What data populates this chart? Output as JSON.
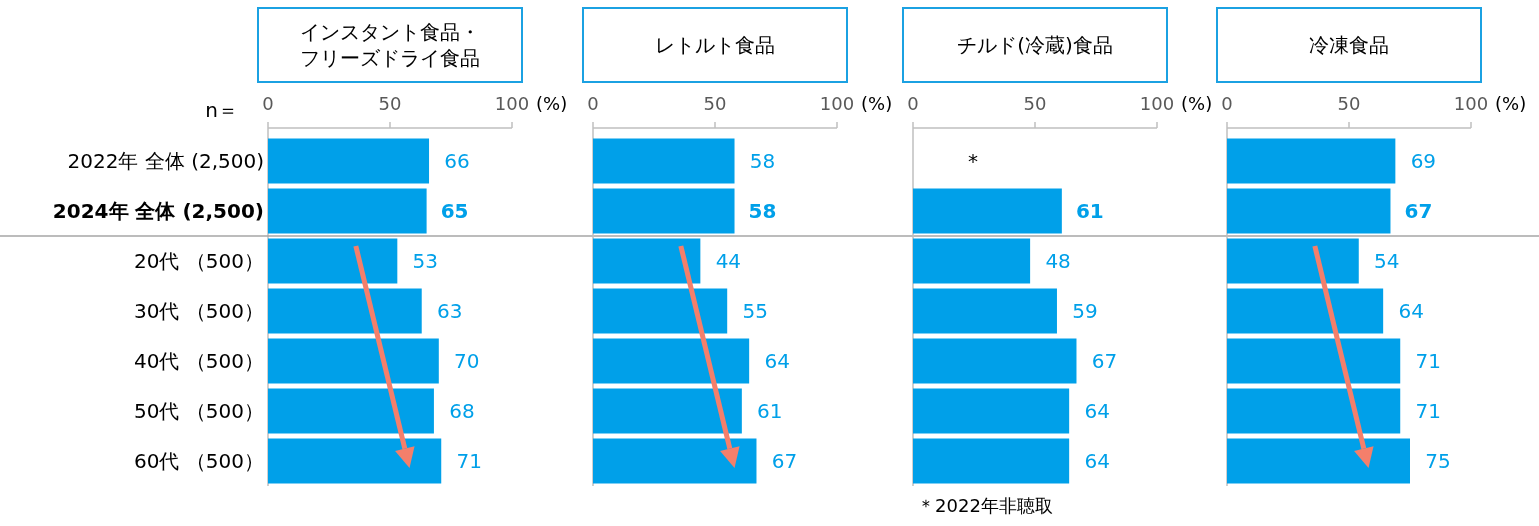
{
  "chart_data": [
    {
      "type": "bar",
      "orientation": "horizontal",
      "title": "インスタント食品・フリーズドライ食品",
      "xlabel": "(%)",
      "categories": [
        "2022年 全体 (2,500)",
        "2024年 全体 (2,500)",
        "20代 （500）",
        "30代 （500）",
        "40代 （500）",
        "50代 （500）",
        "60代 （500）"
      ],
      "values": [
        66,
        65,
        53,
        63,
        70,
        68,
        71
      ],
      "color": "#00a0e9",
      "xlim": [
        0,
        100
      ],
      "xticks": [
        0,
        50,
        100
      ],
      "data_labels": true,
      "annotations": [
        "n＝"
      ]
    },
    {
      "type": "bar",
      "orientation": "horizontal",
      "title": "レトルト食品",
      "xlabel": "(%)",
      "values": [
        58,
        58,
        44,
        55,
        64,
        61,
        67
      ],
      "color": "#00a0e9",
      "xlim": [
        0,
        100
      ],
      "xticks": [
        0,
        50,
        100
      ],
      "data_labels": true,
      "tick_labels": "x"
    },
    {
      "type": "bar",
      "orientation": "horizontal",
      "title": "チルド(冷蔵)食品",
      "xlabel": "(%)",
      "values": [
        null,
        61,
        48,
        59,
        67,
        64,
        64
      ],
      "value_labels": [
        "*",
        "61",
        "48",
        "59",
        "67",
        "64",
        "64"
      ],
      "color": "#00a0e9",
      "xlim": [
        0,
        100
      ],
      "xticks": [
        0,
        50,
        100
      ],
      "tick_labels": "x",
      "annotations": [
        "＊2022年非聴取"
      ]
    },
    {
      "type": "bar",
      "orientation": "horizontal",
      "title": "冷凍食品",
      "xlabel": "(%)",
      "values": [
        69,
        67,
        54,
        64,
        71,
        71,
        75
      ],
      "color": "#00a0e9",
      "xlim": [
        0,
        100
      ],
      "xticks": [
        0,
        50,
        100
      ],
      "data_labels": true,
      "tick_labels": "x"
    }
  ]
}
